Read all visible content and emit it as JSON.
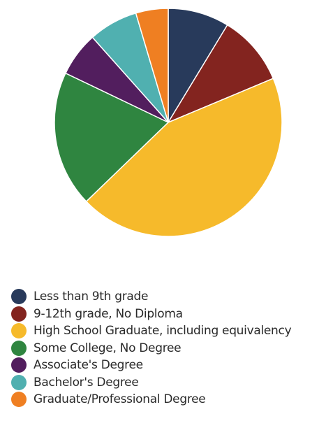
{
  "chart_data": {
    "type": "pie",
    "categories": [
      "Less than 9th grade",
      "9-12th grade, No Diploma",
      "High School Graduate, including equivalency",
      "Some College, No Degree",
      "Associate's Degree",
      "Bachelor's Degree",
      "Graduate/Professional Degree"
    ],
    "values": [
      8.7,
      10.0,
      44.1,
      19.3,
      6.3,
      7.0,
      4.6
    ],
    "unit": "%",
    "colors": [
      "#283a5b",
      "#83241f",
      "#f6ba2b",
      "#2f8540",
      "#521e5e",
      "#50b0b0",
      "#ef7f22"
    ],
    "legend_position": "bottom",
    "start_angle_deg": 0,
    "direction": "clockwise"
  }
}
